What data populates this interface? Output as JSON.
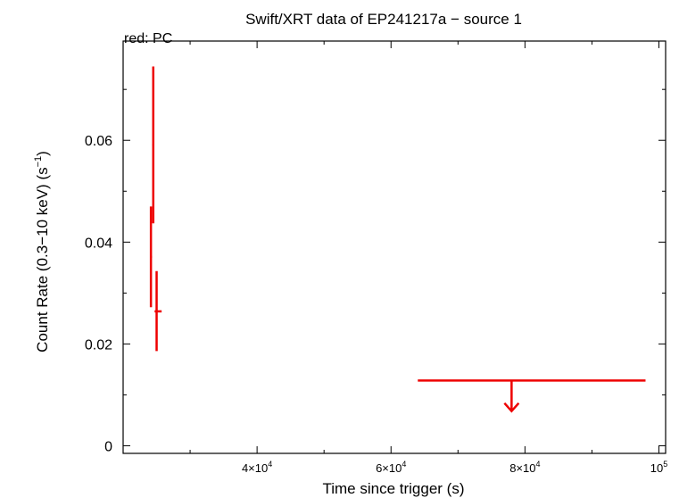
{
  "chart_data": {
    "type": "scatter",
    "title": "Swift/XRT data of EP241217a − source 1",
    "subtitle": "red: PC",
    "xlabel": "Time since trigger (s)",
    "ylabel_main": "Count Rate (0.3−10 keV) (s",
    "ylabel_sup": "−1",
    "ylabel_close": ")",
    "xlim": [
      20000,
      101000
    ],
    "ylim": [
      -0.0015,
      0.0795
    ],
    "x_ticks": [
      {
        "value": 40000,
        "mant": "4×10",
        "exp": "4"
      },
      {
        "value": 60000,
        "mant": "6×10",
        "exp": "4"
      },
      {
        "value": 80000,
        "mant": "8×10",
        "exp": "4"
      },
      {
        "value": 100000,
        "mant": "10",
        "exp": "5"
      }
    ],
    "y_ticks": [
      {
        "value": 0,
        "label": "0"
      },
      {
        "value": 0.02,
        "label": "0.02"
      },
      {
        "value": 0.04,
        "label": "0.04"
      },
      {
        "value": 0.06,
        "label": "0.06"
      }
    ],
    "color": "#ee0000",
    "series": [
      {
        "points": [
          {
            "x": 24150,
            "xlo": 24000,
            "xhi": 24300,
            "y": 0.0371,
            "ylo": 0.0272,
            "yhi": 0.047
          },
          {
            "x": 24500,
            "xlo": 24330,
            "xhi": 24660,
            "y": 0.0591,
            "ylo": 0.0437,
            "yhi": 0.0745
          },
          {
            "x": 25000,
            "xlo": 24700,
            "xhi": 25750,
            "y": 0.0264,
            "ylo": 0.0186,
            "yhi": 0.0343
          }
        ],
        "upper_limits": [
          {
            "x": 78000,
            "xlo": 64000,
            "xhi": 98000,
            "y": 0.0128,
            "arrow_to": 0.0068
          }
        ]
      }
    ]
  }
}
